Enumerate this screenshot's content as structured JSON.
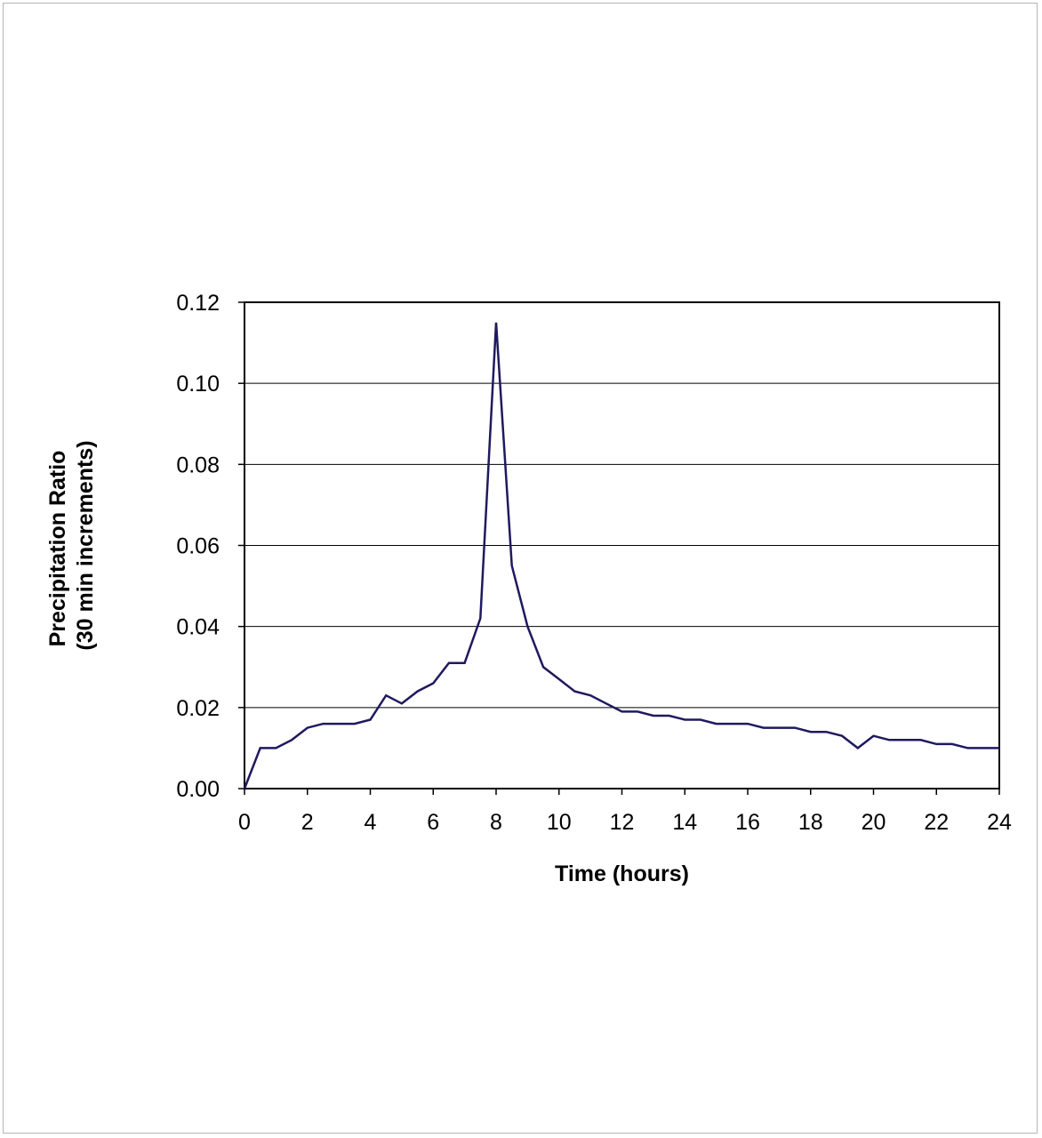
{
  "chart_data": {
    "type": "line",
    "title": "",
    "xlabel": "Time (hours)",
    "ylabel_lines": [
      "Precipitation Ratio",
      "(30 min increments)"
    ],
    "xlim": [
      0,
      24
    ],
    "ylim": [
      0,
      0.12
    ],
    "x_ticks": [
      "0",
      "2",
      "4",
      "6",
      "8",
      "10",
      "12",
      "14",
      "16",
      "18",
      "20",
      "22",
      "24"
    ],
    "y_ticks": [
      "0.00",
      "0.02",
      "0.04",
      "0.06",
      "0.08",
      "0.10",
      "0.12"
    ],
    "grid": "horizontal",
    "legend": "none",
    "line_color": "#1f1a5e",
    "series": [
      {
        "x": [
          0,
          0.5,
          1,
          1.5,
          2,
          2.5,
          3,
          3.5,
          4,
          4.5,
          5,
          5.5,
          6,
          6.5,
          7,
          7.5,
          8,
          8.5,
          9,
          9.5,
          10,
          10.5,
          11,
          11.5,
          12,
          12.5,
          13,
          13.5,
          14,
          14.5,
          15,
          15.5,
          16,
          16.5,
          17,
          17.5,
          18,
          18.5,
          19,
          19.5,
          20,
          20.5,
          21,
          21.5,
          22,
          22.5,
          23,
          23.5,
          24
        ],
        "y": [
          0.0,
          0.01,
          0.01,
          0.012,
          0.015,
          0.016,
          0.016,
          0.016,
          0.017,
          0.023,
          0.021,
          0.024,
          0.026,
          0.031,
          0.031,
          0.042,
          0.115,
          0.055,
          0.04,
          0.03,
          0.027,
          0.024,
          0.023,
          0.021,
          0.019,
          0.019,
          0.018,
          0.018,
          0.017,
          0.017,
          0.016,
          0.016,
          0.016,
          0.015,
          0.015,
          0.015,
          0.014,
          0.014,
          0.013,
          0.01,
          0.013,
          0.012,
          0.012,
          0.012,
          0.011,
          0.011,
          0.01,
          0.01,
          0.01
        ]
      }
    ]
  }
}
